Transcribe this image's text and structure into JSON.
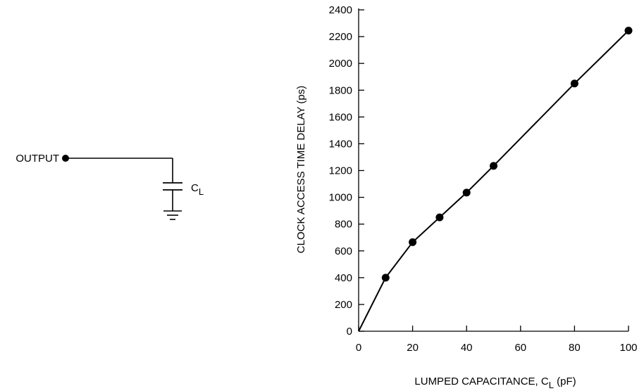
{
  "circuit": {
    "output_label": "OUTPUT",
    "cap_label_main": "C",
    "cap_label_sub": "L"
  },
  "chart_data": {
    "type": "line",
    "xlabel_main": "LUMPED CAPACITANCE, C",
    "xlabel_sub": "L",
    "xlabel_unit": " (pF)",
    "ylabel": "CLOCK ACCESS TIME DELAY (ps)",
    "xlim": [
      0,
      100
    ],
    "ylim": [
      0,
      2400
    ],
    "xticks": [
      0,
      20,
      40,
      60,
      80,
      100
    ],
    "yticks": [
      0,
      200,
      400,
      600,
      800,
      1000,
      1200,
      1400,
      1600,
      1800,
      2000,
      2200,
      2400
    ],
    "grid": false,
    "series": [
      {
        "x": [
          0,
          10,
          20,
          30,
          40,
          50,
          80,
          100
        ],
        "y": [
          0,
          400,
          665,
          850,
          1035,
          1235,
          1850,
          2245
        ],
        "markers": [
          false,
          true,
          true,
          true,
          true,
          true,
          true,
          true
        ],
        "color": "#000000"
      }
    ]
  }
}
